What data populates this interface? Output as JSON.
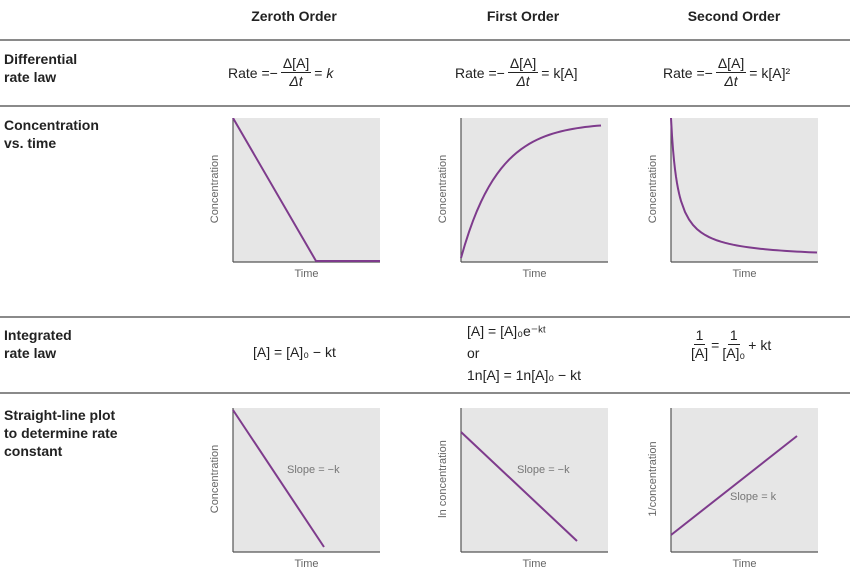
{
  "columns": [
    "Zeroth Order",
    "First Order",
    "Second Order"
  ],
  "rows": [
    "Differential\nrate law",
    "Concentration\nvs. time",
    "Integrated\nrate law",
    "Straight-line plot\nto determine rate\nconstant"
  ],
  "rate_law": {
    "prefix": "Rate =−",
    "num": "Δ[A]",
    "den": "Δt",
    "eq": "=",
    "rhs": [
      "k",
      "k[A]",
      "k[A]²"
    ]
  },
  "integrated": {
    "zeroth": "[A] = [A]₀ − kt",
    "first_line1": "[A] = [A]₀e⁻ᵏᵗ",
    "first_or": "or",
    "first_line2": "1n[A] = 1n[A]₀ − kt",
    "second_lhs_num": "1",
    "second_lhs_den": "[A]",
    "second_eq": "=",
    "second_rhs_num": "1",
    "second_rhs_den": "[A]₀",
    "second_tail": "+ kt"
  },
  "plots": {
    "conc": [
      {
        "ylabel": "Concentration",
        "xlabel": "Time",
        "shape": "linear-to-zero"
      },
      {
        "ylabel": "Concentration",
        "xlabel": "Time",
        "shape": "exponential-decay"
      },
      {
        "ylabel": "Concentration",
        "xlabel": "Time",
        "shape": "reciprocal-decay"
      }
    ],
    "linear": [
      {
        "ylabel": "Concentration",
        "xlabel": "Time",
        "slope": "Slope = −k"
      },
      {
        "ylabel": "ln concentration",
        "xlabel": "Time",
        "slope": "Slope = −k"
      },
      {
        "ylabel": "1/concentration",
        "xlabel": "Time",
        "slope": "Slope = k"
      }
    ]
  },
  "colors": {
    "curve": "#7e3b8c",
    "plot_bg": "#e6e6e6",
    "axis": "#555555"
  }
}
